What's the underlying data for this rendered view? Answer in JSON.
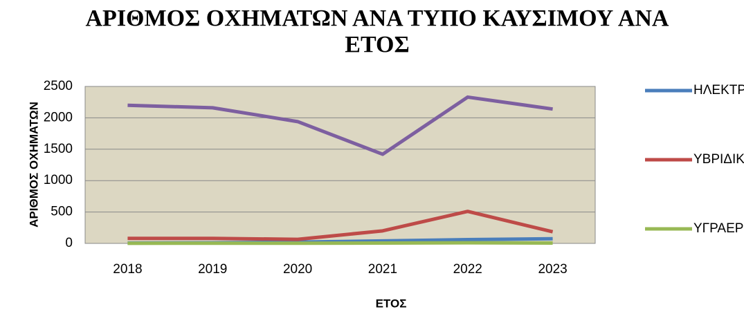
{
  "chart_data": {
    "type": "line",
    "title": "ΑΡΙΘΜΟΣ ΟΧΗΜΑΤΩΝ ΑΝΑ ΤΥΠΟ ΚΑΥΣΙΜΟΥ ΑΝΑ ΕΤΟΣ",
    "x_label": "ΕΤΟΣ",
    "y_label": "ΑΡΙΘΜΟΣ ΟΧΗΜΑΤΩΝ",
    "categories": [
      "2018",
      "2019",
      "2020",
      "2021",
      "2022",
      "2023"
    ],
    "series": [
      {
        "name": "ΗΛΕΚΤΡΙΚΑ",
        "color": "#4a7ebb",
        "values": [
          5,
          10,
          20,
          40,
          60,
          75
        ]
      },
      {
        "name": "ΥΒΡΙΔΙΚΑ",
        "color": "#be4b48",
        "values": [
          80,
          80,
          65,
          200,
          510,
          185
        ]
      },
      {
        "name": "ΥΓΡΑΕΡΙΟ",
        "color": "#98b954",
        "values": [
          2,
          3,
          3,
          5,
          10,
          5
        ]
      },
      {
        "color": "#7d5fa0",
        "values": [
          2200,
          2160,
          1940,
          1420,
          2330,
          2140
        ]
      }
    ],
    "ylim": [
      0,
      2500
    ],
    "yticks": [
      0,
      500,
      1000,
      1500,
      2000,
      2500
    ],
    "grid": true,
    "legend": "right"
  }
}
